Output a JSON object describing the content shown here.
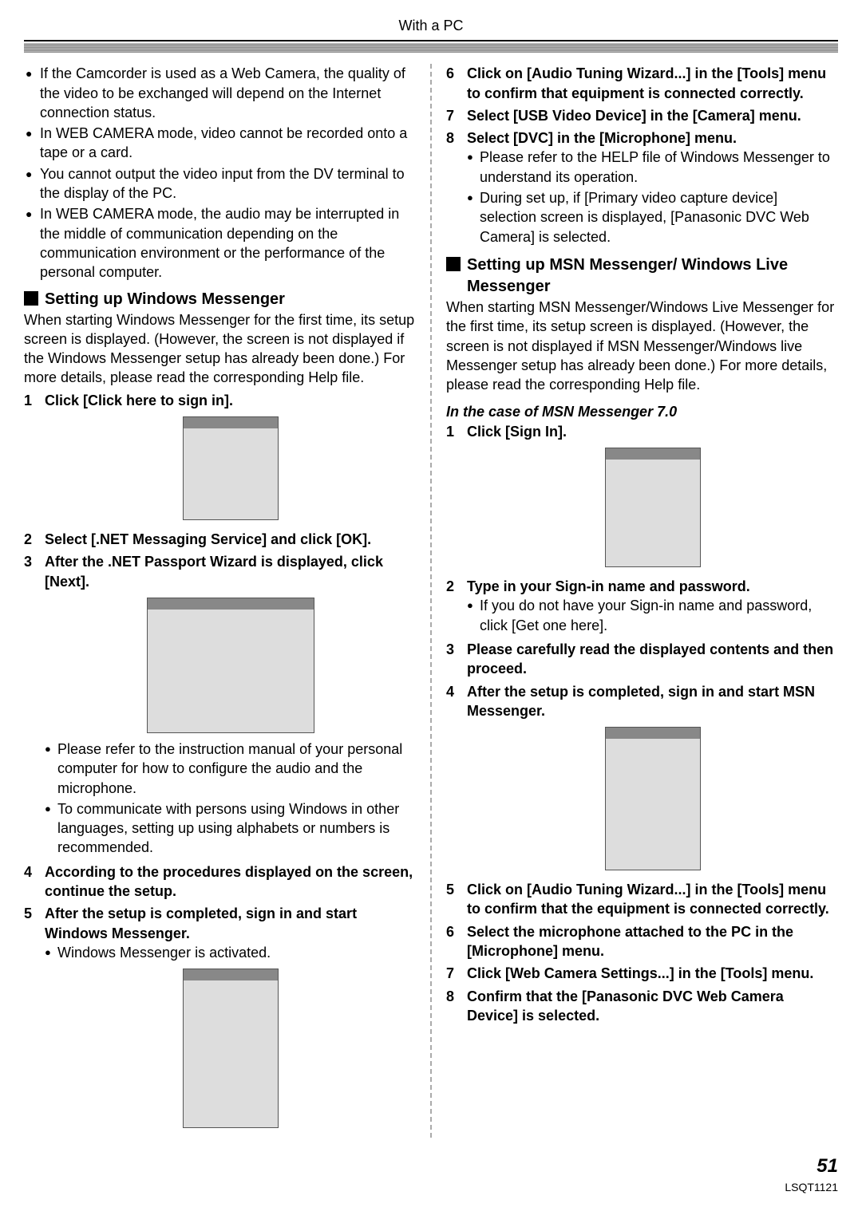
{
  "header": {
    "title": "With a PC"
  },
  "left": {
    "bullets": [
      "If the Camcorder is used as a Web Camera, the quality of the video to be exchanged will depend on the Internet connection status.",
      "In WEB CAMERA mode, video cannot be recorded onto a tape or a card.",
      "You cannot output the video input from the DV terminal to the display of the PC.",
      "In WEB CAMERA mode, the audio may be interrupted in the middle of communication depending on the communication environment or the performance of the personal computer."
    ],
    "section_title": "Setting up Windows Messenger",
    "intro": "When starting Windows Messenger for the first time, its setup screen is displayed. (However, the screen is not displayed if the Windows Messenger setup has already been done.) For more details, please read the corresponding Help file.",
    "step1": "Click [Click here to sign in].",
    "step2": "Select [.NET Messaging Service] and click [OK].",
    "step3": "After the .NET Passport Wizard is displayed, click [Next].",
    "step3_sub": [
      "Please refer to the instruction manual of your personal computer for how to configure the audio and the microphone.",
      "To communicate with persons using Windows in other languages, setting up using alphabets or numbers is recommended."
    ],
    "step4": "According to the procedures displayed on the screen, continue the setup.",
    "step5": "After the setup is completed, sign in and start Windows Messenger.",
    "step5_sub": [
      "Windows Messenger is activated."
    ]
  },
  "right": {
    "step6": "Click on [Audio Tuning Wizard...] in the [Tools] menu to confirm that equipment is connected correctly.",
    "step7": "Select [USB Video Device] in the [Camera] menu.",
    "step8": "Select [DVC] in the [Microphone] menu.",
    "step8_sub": [
      "Please refer to the HELP file of Windows Messenger to understand its operation.",
      "During set up, if [Primary video capture device] selection screen is displayed, [Panasonic DVC Web Camera] is selected."
    ],
    "section_title": "Setting up MSN Messenger/ Windows Live Messenger",
    "intro": "When starting MSN Messenger/Windows Live Messenger for the first time, its setup screen is displayed. (However, the screen is not displayed if MSN Messenger/Windows live Messenger setup has already been done.) For more details, please read the corresponding Help file.",
    "case_head": "In the case of MSN Messenger 7.0",
    "m_step1": "Click [Sign In].",
    "m_step2": "Type in your Sign-in name and password.",
    "m_step2_sub": [
      "If you do not have your Sign-in name and password, click [Get one here]."
    ],
    "m_step3": "Please carefully read the displayed contents and then proceed.",
    "m_step4": "After the setup is completed, sign in and start MSN Messenger.",
    "m_step5": "Click on [Audio Tuning Wizard...] in the [Tools] menu to confirm that the equipment is connected correctly.",
    "m_step6": "Select the microphone attached to the PC in the [Microphone] menu.",
    "m_step7": "Click [Web Camera Settings...] in the [Tools] menu.",
    "m_step8": "Confirm that the [Panasonic DVC Web Camera Device] is selected."
  },
  "footer": {
    "page": "51",
    "code": "LSQT1121"
  }
}
